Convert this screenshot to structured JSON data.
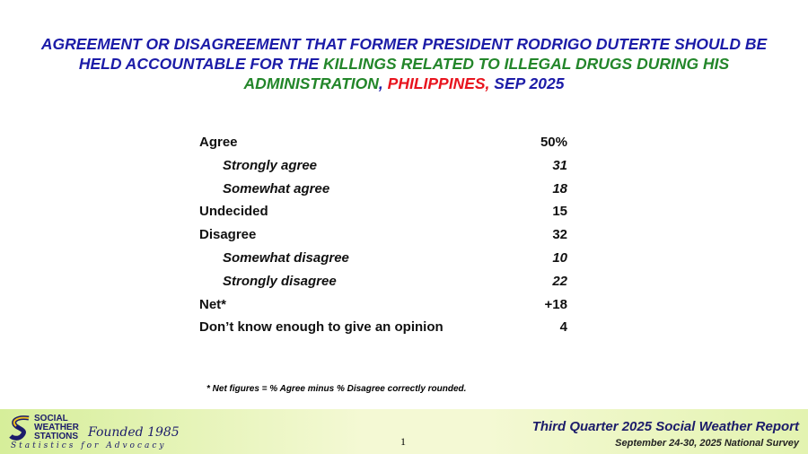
{
  "header": {
    "title_parts": [
      {
        "text": "AGREEMENT OR DISAGREEMENT THAT FORMER PRESIDENT RODRIGO DUTERTE SHOULD BE HELD ACCOUNTABLE FOR THE ",
        "color": "#1c1ca8"
      },
      {
        "text": "KILLINGS RELATED TO ILLEGAL DRUGS DURING HIS ADMINISTRATION",
        "color": "#23862a"
      },
      {
        "text": ", ",
        "color": "#1c1ca8"
      },
      {
        "text": "PHILIPPINES,",
        "color": "#e8141e"
      },
      {
        "text": " SEP 2025",
        "color": "#1c1ca8"
      }
    ]
  },
  "table": {
    "rows": [
      {
        "label": "Agree",
        "value": "50%",
        "items": [
          {
            "label": "Strongly agree",
            "value": "31"
          },
          {
            "label": "Somewhat agree",
            "value": "18"
          }
        ]
      },
      {
        "label": "Undecided",
        "value": "15"
      },
      {
        "label": "Disagree",
        "value": "32",
        "items": [
          {
            "label": "Somewhat disagree",
            "value": "10"
          },
          {
            "label": "Strongly disagree",
            "value": "22"
          }
        ]
      },
      {
        "label": "Net*",
        "value": "+18"
      },
      {
        "label": "Don’t know enough to give an opinion",
        "value": "4"
      }
    ]
  },
  "footnote": "* Net figures = % Agree minus % Disagree correctly rounded.",
  "footer": {
    "logo_lines": [
      "SOCIAL",
      "WEATHER",
      "STATIONS"
    ],
    "founded": "Founded 1985",
    "tagline": "Statistics for Advocacy",
    "page": "1",
    "report": "Third Quarter 2025 Social Weather Report",
    "survey": "September 24-30, 2025 National Survey"
  }
}
